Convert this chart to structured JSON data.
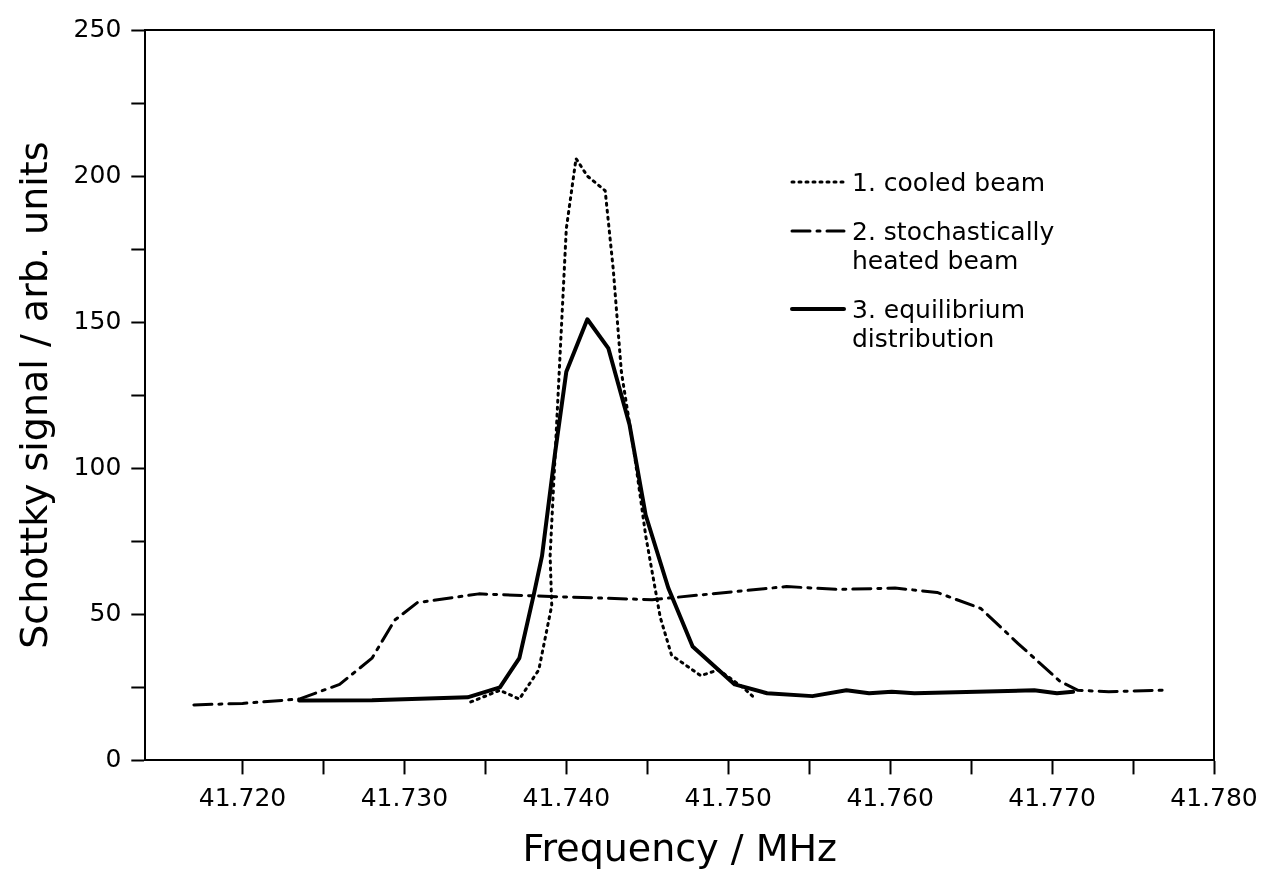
{
  "chart_data": {
    "type": "line",
    "xlabel": "Frequency / MHz",
    "ylabel": "Schottky signal / arb. units",
    "xlim": [
      41.714,
      41.78
    ],
    "ylim": [
      0,
      250
    ],
    "xticks": [
      {
        "value": 41.72,
        "label": "41.720"
      },
      {
        "value": 41.725,
        "label": null
      },
      {
        "value": 41.73,
        "label": "41.730"
      },
      {
        "value": 41.735,
        "label": null
      },
      {
        "value": 41.74,
        "label": "41.740"
      },
      {
        "value": 41.745,
        "label": null
      },
      {
        "value": 41.75,
        "label": "41.750"
      },
      {
        "value": 41.755,
        "label": null
      },
      {
        "value": 41.76,
        "label": "41.760"
      },
      {
        "value": 41.765,
        "label": null
      },
      {
        "value": 41.77,
        "label": "41.770"
      },
      {
        "value": 41.775,
        "label": null
      },
      {
        "value": 41.78,
        "label": "41.780"
      }
    ],
    "yticks": [
      0,
      {
        "value": 25,
        "label": null
      },
      50,
      {
        "value": 75,
        "label": null
      },
      100,
      {
        "value": 125,
        "label": null
      },
      150,
      {
        "value": 175,
        "label": null
      },
      200,
      {
        "value": 225,
        "label": null
      },
      250
    ],
    "grid": false,
    "legend": "top right",
    "marker": "none",
    "series": [
      {
        "name": "1. cooled beam",
        "color": "#000000",
        "line_style": "dotted",
        "x": [
          41.7341,
          41.7359,
          41.7371,
          41.7383,
          41.7391,
          41.739,
          41.7395,
          41.74,
          41.7406,
          41.7413,
          41.7424,
          41.7429,
          41.7434,
          41.7442,
          41.7449,
          41.7458,
          41.7465,
          41.7483,
          41.7494,
          41.7509,
          41.7515
        ],
        "values": [
          20,
          24,
          21,
          31,
          53,
          70,
          126,
          182,
          206,
          200,
          195,
          168,
          133,
          105,
          77,
          49,
          36,
          29,
          31,
          25,
          22
        ]
      },
      {
        "name": "2. stochastically heated beam",
        "color": "#000000",
        "line_style": "dashed",
        "x": [
          41.717,
          41.72,
          41.7235,
          41.726,
          41.728,
          41.7294,
          41.7308,
          41.7346,
          41.7396,
          41.7453,
          41.7508,
          41.7536,
          41.7568,
          41.7603,
          41.7629,
          41.7656,
          41.7679,
          41.7705,
          41.7716,
          41.7735,
          41.7768
        ],
        "values": [
          19,
          19.5,
          21,
          26,
          35,
          48,
          54,
          57,
          56,
          55,
          58,
          59.5,
          58.5,
          59,
          57.5,
          52,
          40,
          27,
          24,
          23.5,
          24
        ]
      },
      {
        "name": "3. equilibrium distribution",
        "color": "#000000",
        "line_style": "solid",
        "x": [
          41.7235,
          41.728,
          41.7339,
          41.7359,
          41.7371,
          41.738,
          41.7385,
          41.7393,
          41.74,
          41.7413,
          41.7426,
          41.7439,
          41.7449,
          41.7463,
          41.7478,
          41.7504,
          41.7524,
          41.7552,
          41.7573,
          41.7587,
          41.7601,
          41.7615,
          41.7689,
          41.7703,
          41.7713
        ],
        "values": [
          20.5,
          20.6,
          21.6,
          25,
          35,
          57,
          70,
          105,
          133,
          151,
          141,
          115,
          84,
          59,
          39,
          26,
          23,
          22,
          24,
          23,
          23.5,
          23,
          24,
          23,
          23.5
        ]
      }
    ]
  }
}
